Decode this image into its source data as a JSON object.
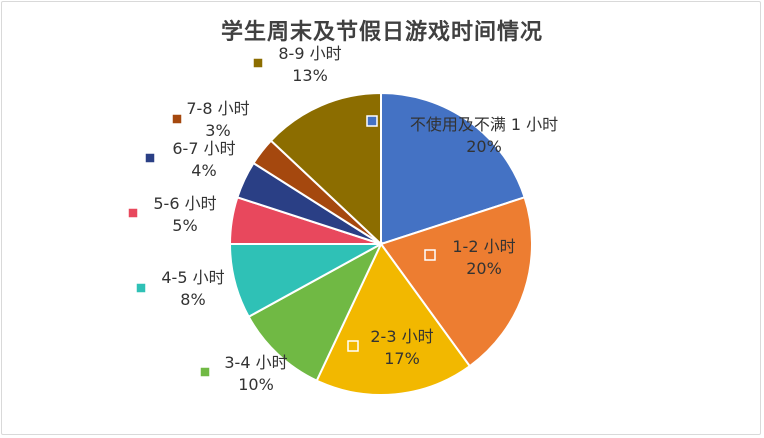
{
  "chart_data": {
    "type": "pie",
    "title": "学生周末及节假日游戏时间情况",
    "slices": [
      {
        "name": "不使用及不满 1 小时",
        "value": 20,
        "label": "20%",
        "color": "#4472c4"
      },
      {
        "name": "1-2 小时",
        "value": 20,
        "label": "20%",
        "color": "#ed7d31"
      },
      {
        "name": "2-3 小时",
        "value": 17,
        "label": "17%",
        "color": "#f2b800"
      },
      {
        "name": "3-4 小时",
        "value": 10,
        "label": "10%",
        "color": "#70b944"
      },
      {
        "name": "4-5 小时",
        "value": 8,
        "label": "8%",
        "color": "#2fc1b6"
      },
      {
        "name": "5-6 小时",
        "value": 5,
        "label": "5%",
        "color": "#e8485d"
      },
      {
        "name": "6-7 小时",
        "value": 4,
        "label": "4%",
        "color": "#2a3f85"
      },
      {
        "name": "7-8 小时",
        "value": 3,
        "label": "3%",
        "color": "#a5480e"
      },
      {
        "name": "8-9 小时",
        "value": 13,
        "label": "13%",
        "color": "#8c6d00"
      }
    ]
  }
}
